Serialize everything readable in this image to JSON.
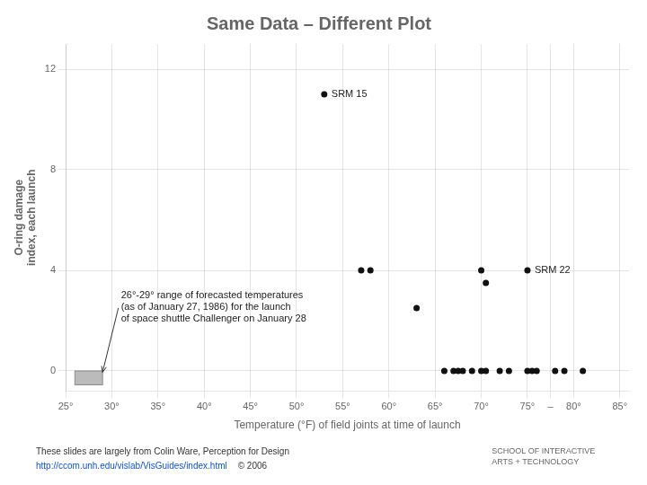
{
  "chart_data": {
    "type": "scatter",
    "title": "Same Data – Different Plot",
    "ylabel": "O-ring damage\nindex, each launch",
    "xlabel": "Temperature (°F) of field joints at time of launch",
    "x": [
      53.0,
      57.0,
      58.0,
      63.0,
      70.0,
      70.5,
      75.0,
      66.0,
      67.0,
      67.5,
      68.0,
      69.0,
      70.0,
      70.5,
      72.0,
      73.0,
      75.0,
      75.5,
      76.0,
      78.0,
      79.0,
      81.0
    ],
    "values": [
      11.0,
      4.0,
      4.0,
      2.5,
      4.0,
      3.5,
      4.0,
      0.0,
      0.0,
      0.0,
      0.0,
      0.0,
      0.0,
      0.0,
      0.0,
      0.0,
      0.0,
      0.0,
      0.0,
      0.0,
      0.0,
      0.0
    ],
    "color": "#111111",
    "xlim": [
      25,
      86
    ],
    "xticks": [
      {
        "value": 25,
        "label": "25°"
      },
      {
        "value": 30,
        "label": "30°"
      },
      {
        "value": 35,
        "label": "35°"
      },
      {
        "value": 40,
        "label": "40°"
      },
      {
        "value": 45,
        "label": "45°"
      },
      {
        "value": 50,
        "label": "50°"
      },
      {
        "value": 55,
        "label": "55°"
      },
      {
        "value": 60,
        "label": "60°"
      },
      {
        "value": 65,
        "label": "65°"
      },
      {
        "value": 70,
        "label": "70°"
      },
      {
        "value": 75,
        "label": "75°"
      },
      {
        "value": 77.5,
        "label": "–"
      },
      {
        "value": 80,
        "label": "80°"
      },
      {
        "value": 85,
        "label": "85°"
      }
    ],
    "ylim": [
      -0.8,
      13.0
    ],
    "yticks": [
      0,
      4,
      8,
      12
    ],
    "grid": true,
    "shaded_range": {
      "x": 26.0,
      "width": 3.0,
      "y": -0.55,
      "height": 0.55
    },
    "annotations": [
      {
        "text": "SRM 15",
        "x": 53.0,
        "y": 11.0
      },
      {
        "text": "SRM 22",
        "x": 75.0,
        "y": 4.0
      },
      {
        "text": "26°-29° range of forecasted temperatures\n(as of January 27, 1986) for the launch\nof space shuttle Challenger on January 28",
        "x": 29.0,
        "y": -0.05,
        "text_x": 31.0,
        "text_y": 3.2
      }
    ],
    "footer": [
      "These slides are largely from Colin Ware, Perception for Design",
      "http://ccom.unh.edu/vislab/VisGuides/index.html",
      "© 2006"
    ],
    "footer_note": "SCHOOL OF INTERACTIVE\nARTS + TECHNOLOGY"
  }
}
